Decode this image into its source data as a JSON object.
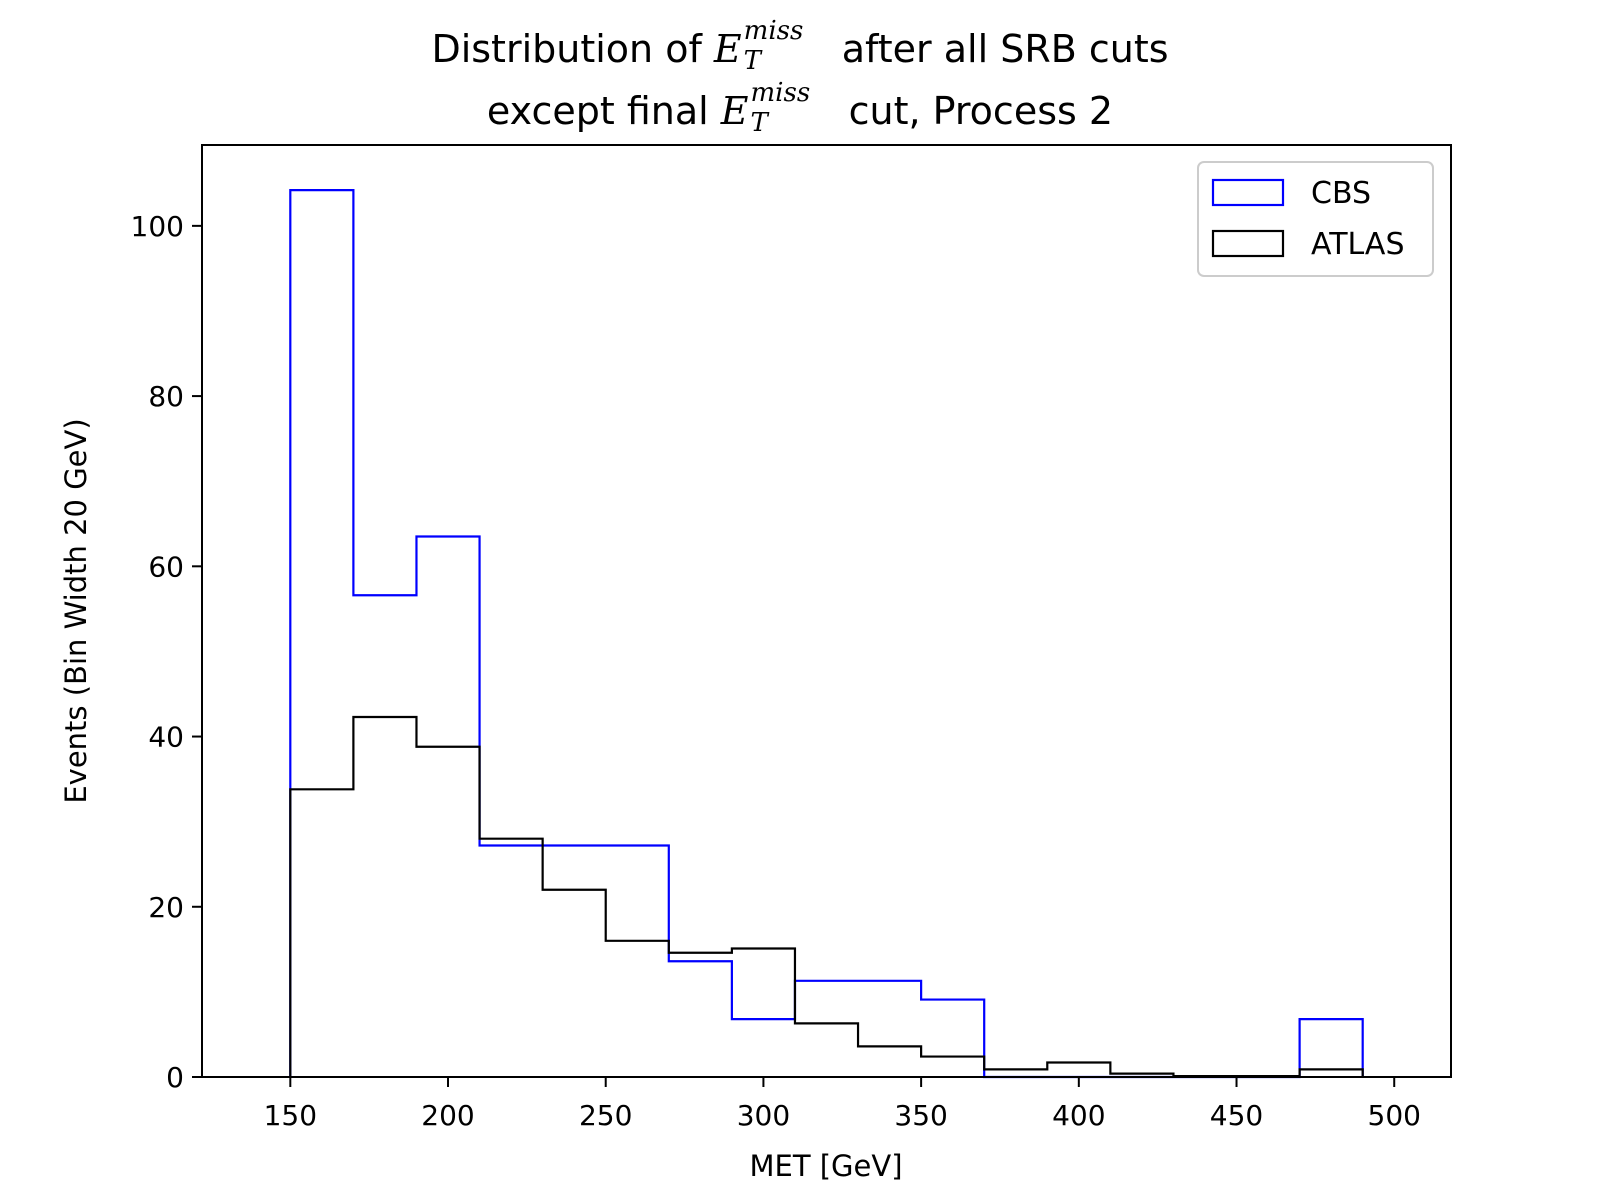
{
  "chart_data": {
    "type": "histogram-step",
    "title": {
      "line1_prefix": "Distribution of ",
      "line1_suffix": " after all SRB cuts",
      "line2_prefix": "except final ",
      "line2_suffix": " cut, Process 2",
      "symbol_base": "E",
      "symbol_sub": "T",
      "symbol_sup": "miss"
    },
    "xlabel": "MET [GeV]",
    "ylabel": "Events (Bin Width 20 GeV)",
    "xlim": [
      122,
      518
    ],
    "ylim": [
      0,
      109.5
    ],
    "xticks": [
      150,
      200,
      250,
      300,
      350,
      400,
      450,
      500
    ],
    "yticks": [
      0,
      20,
      40,
      60,
      80,
      100
    ],
    "bin_edges": [
      150,
      170,
      190,
      210,
      230,
      250,
      270,
      290,
      310,
      330,
      350,
      370,
      390,
      410,
      430,
      450,
      470,
      490
    ],
    "legend_position": "top-right",
    "series": [
      {
        "name": "CBS",
        "color": "#0000ff",
        "values": [
          104.2,
          56.6,
          63.5,
          27.2,
          27.2,
          27.2,
          13.6,
          6.8,
          11.3,
          11.3,
          9.1,
          0,
          0,
          0,
          0,
          0,
          6.8
        ]
      },
      {
        "name": "ATLAS",
        "color": "#000000",
        "values": [
          33.8,
          42.3,
          38.8,
          28.0,
          22.0,
          16.0,
          14.6,
          15.1,
          6.3,
          3.6,
          2.4,
          0.9,
          1.7,
          0.4,
          0.1,
          0.1,
          0.9
        ]
      }
    ]
  }
}
